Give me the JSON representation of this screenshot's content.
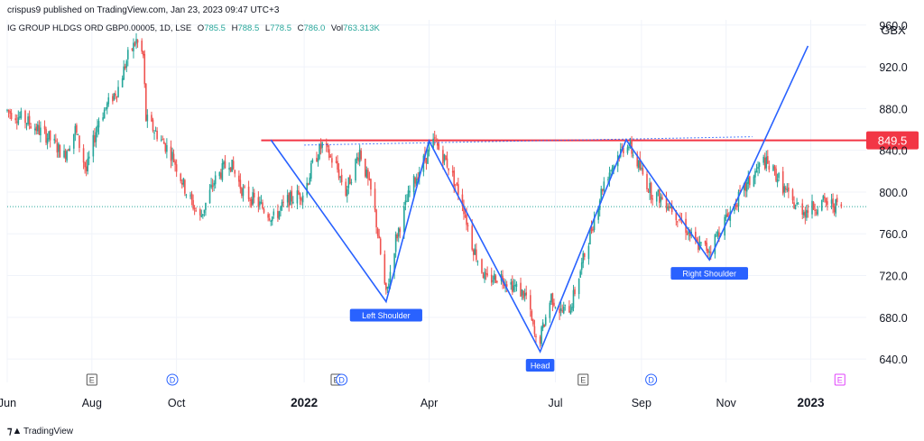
{
  "header": {
    "published": "crispus9 published on TradingView.com, Jan 23, 2023 09:47 UTC+3",
    "instrument": "IG GROUP HLDGS ORD GBP0.00005, 1D, LSE",
    "ohlc": [
      {
        "key": "O",
        "value": "785.5"
      },
      {
        "key": "H",
        "value": "788.5"
      },
      {
        "key": "L",
        "value": "778.5"
      },
      {
        "key": "C",
        "value": "786.0"
      },
      {
        "key": "Vol",
        "value": "763.313K"
      }
    ]
  },
  "footer": {
    "brand": "TradingView"
  },
  "colors": {
    "up": "#26a69a",
    "down": "#ef5350",
    "pattern": "#2962ff",
    "resistance": "#f23645",
    "axis_text": "#131722",
    "grid": "#f0f3fa"
  },
  "chart_data": {
    "type": "candlestick",
    "currency": "GBX",
    "ylim": [
      628,
      965
    ],
    "y_ticks": [
      960,
      920,
      880,
      840,
      800,
      760,
      720,
      680,
      640
    ],
    "y_tick_labels": [
      "960.0",
      "920.0",
      "880.0",
      "840.0",
      "800.0",
      "760.0",
      "720.0",
      "680.0",
      "640.0"
    ],
    "x_range": [
      "2021-06-01",
      "2023-02-10"
    ],
    "x_ticks": [
      {
        "date": "2021-06-01",
        "label": "Jun",
        "bold": false
      },
      {
        "date": "2021-08-01",
        "label": "Aug",
        "bold": false
      },
      {
        "date": "2021-10-01",
        "label": "Oct",
        "bold": false
      },
      {
        "date": "2022-01-01",
        "label": "2022",
        "bold": true
      },
      {
        "date": "2022-04-01",
        "label": "Apr",
        "bold": false
      },
      {
        "date": "2022-07-01",
        "label": "Jul",
        "bold": false
      },
      {
        "date": "2022-09-01",
        "label": "Sep",
        "bold": false
      },
      {
        "date": "2022-11-01",
        "label": "Nov",
        "bold": false
      },
      {
        "date": "2023-01-01",
        "label": "2023",
        "bold": true
      }
    ],
    "current_price": 786.0,
    "resistance": {
      "value": 849.5,
      "label": "849.5",
      "from": "2021-12-01"
    },
    "neckline_dotted": {
      "from": [
        "2022-01-01",
        845
      ],
      "to": [
        "2022-11-20",
        853
      ]
    },
    "pattern_lines": [
      [
        "2021-12-08",
        850
      ],
      [
        "2022-03-01",
        695
      ],
      [
        "2022-04-01",
        849
      ],
      [
        "2022-06-20",
        647
      ],
      [
        "2022-08-21",
        850
      ],
      [
        "2022-10-20",
        735
      ],
      [
        "2022-12-30",
        940
      ]
    ],
    "pattern_labels": [
      {
        "text": "Left Shoulder",
        "date": "2022-03-01",
        "price": 695
      },
      {
        "text": "Head",
        "date": "2022-06-20",
        "price": 647
      },
      {
        "text": "Right Shoulder",
        "date": "2022-10-20",
        "price": 735
      }
    ],
    "event_markers": [
      {
        "date": "2021-08-01",
        "label": "E",
        "kind": "earnings"
      },
      {
        "date": "2021-09-28",
        "label": "D",
        "kind": "dividend"
      },
      {
        "date": "2022-01-24",
        "label": "E",
        "kind": "earnings"
      },
      {
        "date": "2022-01-28",
        "label": "D",
        "kind": "dividend"
      },
      {
        "date": "2022-07-21",
        "label": "E",
        "kind": "earnings"
      },
      {
        "date": "2022-09-08",
        "label": "D",
        "kind": "dividend"
      },
      {
        "date": "2023-01-22",
        "label": "E",
        "kind": "earnings-upcoming"
      }
    ],
    "price_path": [
      [
        "2021-06-01",
        878
      ],
      [
        "2021-06-15",
        868
      ],
      [
        "2021-07-01",
        852
      ],
      [
        "2021-07-12",
        835
      ],
      [
        "2021-07-20",
        860
      ],
      [
        "2021-07-28",
        820
      ],
      [
        "2021-08-06",
        870
      ],
      [
        "2021-08-20",
        900
      ],
      [
        "2021-08-27",
        930
      ],
      [
        "2021-09-02",
        945
      ],
      [
        "2021-09-07",
        930
      ],
      [
        "2021-09-09",
        870
      ],
      [
        "2021-09-20",
        850
      ],
      [
        "2021-09-28",
        835
      ],
      [
        "2021-10-08",
        800
      ],
      [
        "2021-10-18",
        775
      ],
      [
        "2021-10-28",
        810
      ],
      [
        "2021-11-08",
        830
      ],
      [
        "2021-11-18",
        800
      ],
      [
        "2021-11-28",
        790
      ],
      [
        "2021-12-10",
        775
      ],
      [
        "2021-12-20",
        792
      ],
      [
        "2022-01-01",
        800
      ],
      [
        "2022-01-08",
        830
      ],
      [
        "2022-01-14",
        845
      ],
      [
        "2022-01-24",
        825
      ],
      [
        "2022-01-31",
        800
      ],
      [
        "2022-02-10",
        840
      ],
      [
        "2022-02-20",
        790
      ],
      [
        "2022-03-01",
        700
      ],
      [
        "2022-03-08",
        755
      ],
      [
        "2022-03-18",
        800
      ],
      [
        "2022-03-28",
        830
      ],
      [
        "2022-04-05",
        848
      ],
      [
        "2022-04-15",
        825
      ],
      [
        "2022-04-25",
        790
      ],
      [
        "2022-05-02",
        750
      ],
      [
        "2022-05-12",
        715
      ],
      [
        "2022-05-22",
        720
      ],
      [
        "2022-06-01",
        710
      ],
      [
        "2022-06-10",
        700
      ],
      [
        "2022-06-18",
        650
      ],
      [
        "2022-06-28",
        700
      ],
      [
        "2022-07-05",
        685
      ],
      [
        "2022-07-12",
        690
      ],
      [
        "2022-07-20",
        730
      ],
      [
        "2022-07-28",
        770
      ],
      [
        "2022-08-05",
        810
      ],
      [
        "2022-08-15",
        835
      ],
      [
        "2022-08-22",
        848
      ],
      [
        "2022-08-30",
        825
      ],
      [
        "2022-09-08",
        800
      ],
      [
        "2022-09-20",
        790
      ],
      [
        "2022-10-01",
        770
      ],
      [
        "2022-10-10",
        750
      ],
      [
        "2022-10-20",
        745
      ],
      [
        "2022-10-30",
        770
      ],
      [
        "2022-11-08",
        790
      ],
      [
        "2022-11-18",
        810
      ],
      [
        "2022-11-28",
        830
      ],
      [
        "2022-12-08",
        815
      ],
      [
        "2022-12-18",
        790
      ],
      [
        "2022-12-28",
        782
      ],
      [
        "2023-01-10",
        790
      ],
      [
        "2023-01-23",
        786
      ]
    ]
  }
}
